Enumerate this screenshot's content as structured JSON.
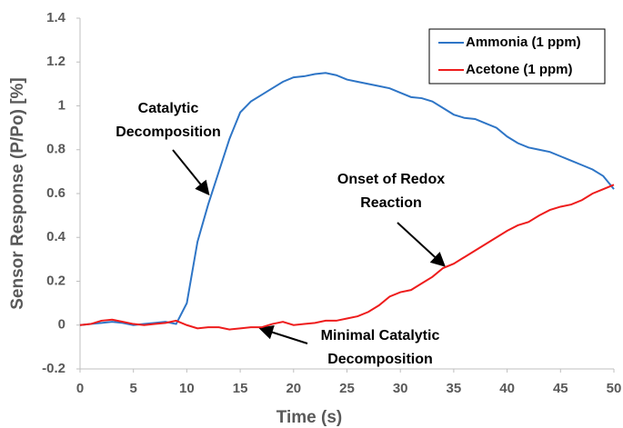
{
  "chart_data": {
    "type": "line",
    "xlabel": "Time (s)",
    "ylabel": "Sensor Response (P/Po) [%]",
    "x": [
      0,
      1,
      2,
      3,
      4,
      5,
      6,
      7,
      8,
      9,
      10,
      11,
      12,
      13,
      14,
      15,
      16,
      17,
      18,
      19,
      20,
      21,
      22,
      23,
      24,
      25,
      26,
      27,
      28,
      29,
      30,
      31,
      32,
      33,
      34,
      35,
      36,
      37,
      38,
      39,
      40,
      41,
      42,
      43,
      44,
      45,
      46,
      47,
      48,
      49,
      50
    ],
    "series": [
      {
        "name": "Ammonia (1 ppm)",
        "color": "#2e75c6",
        "values": [
          0,
          0.005,
          0.01,
          0.015,
          0.01,
          0,
          0.005,
          0.01,
          0.015,
          0.005,
          0.1,
          0.38,
          0.55,
          0.7,
          0.85,
          0.97,
          1.02,
          1.05,
          1.08,
          1.11,
          1.13,
          1.135,
          1.145,
          1.15,
          1.14,
          1.12,
          1.11,
          1.1,
          1.09,
          1.08,
          1.06,
          1.04,
          1.035,
          1.02,
          0.99,
          0.96,
          0.945,
          0.94,
          0.92,
          0.9,
          0.86,
          0.83,
          0.81,
          0.8,
          0.79,
          0.77,
          0.75,
          0.73,
          0.71,
          0.68,
          0.62
        ]
      },
      {
        "name": "Acetone (1 ppm)",
        "color": "#ee1c1c",
        "values": [
          0,
          0.005,
          0.02,
          0.025,
          0.015,
          0.005,
          0,
          0.005,
          0.01,
          0.02,
          0,
          -0.015,
          -0.01,
          -0.01,
          -0.02,
          -0.015,
          -0.01,
          -0.01,
          0.005,
          0.015,
          0,
          0.005,
          0.01,
          0.02,
          0.02,
          0.03,
          0.04,
          0.06,
          0.09,
          0.13,
          0.15,
          0.16,
          0.19,
          0.22,
          0.26,
          0.28,
          0.31,
          0.34,
          0.37,
          0.4,
          0.43,
          0.455,
          0.47,
          0.5,
          0.525,
          0.54,
          0.55,
          0.57,
          0.6,
          0.62,
          0.64
        ]
      }
    ],
    "xlim": [
      0,
      50
    ],
    "xticks": [
      0,
      5,
      10,
      15,
      20,
      25,
      30,
      35,
      40,
      45,
      50
    ],
    "ylim": [
      -0.2,
      1.4
    ],
    "yticks": [
      -0.2,
      0,
      0.2,
      0.4,
      0.6,
      0.8,
      1,
      1.2,
      1.4
    ],
    "legend": "upper right",
    "annotations": [
      {
        "lines": [
          "Catalytic",
          "Decomposition"
        ]
      },
      {
        "lines": [
          "Onset of Redox",
          "Reaction"
        ]
      },
      {
        "lines": [
          "Minimal Catalytic",
          "Decomposition"
        ]
      }
    ]
  }
}
